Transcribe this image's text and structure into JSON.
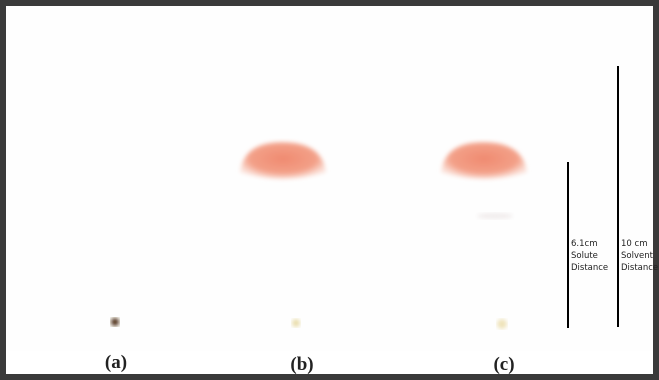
{
  "lanes": [
    {
      "label": "(a)"
    },
    {
      "label": "(b)"
    },
    {
      "label": "(c)"
    }
  ],
  "measurements": [
    {
      "lines": [
        "6.1cm",
        "Solute",
        "Distance"
      ]
    },
    {
      "lines": [
        "10 cm",
        "Solvent",
        "Distance"
      ]
    }
  ]
}
